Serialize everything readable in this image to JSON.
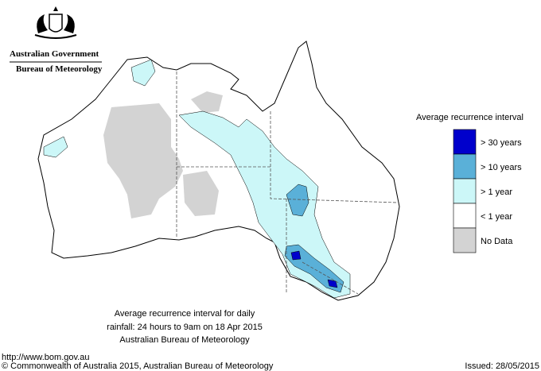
{
  "header": {
    "government": "Australian Government",
    "agency": "Bureau of Meteorology"
  },
  "legend": {
    "title": "Average recurrence interval",
    "items": [
      {
        "label": "> 30 years",
        "color": "#0000cc"
      },
      {
        "label": "> 10 years",
        "color": "#5ab0d8"
      },
      {
        "label": "> 1 year",
        "color": "#ccf7f8"
      },
      {
        "label": "< 1 year",
        "color": "#ffffff"
      },
      {
        "label": "No Data",
        "color": "#d3d3d3"
      }
    ]
  },
  "caption": {
    "line1": "Average recurrence interval for daily",
    "line2": "rainfall: 24 hours to 9am on 18 Apr 2015",
    "source": "Australian Bureau of Meteorology"
  },
  "footer": {
    "url": "http://www.bom.gov.au",
    "copyright": "© Commonwealth of Australia 2015, Australian Bureau of Meteorology",
    "issued": "Issued: 28/05/2015"
  }
}
